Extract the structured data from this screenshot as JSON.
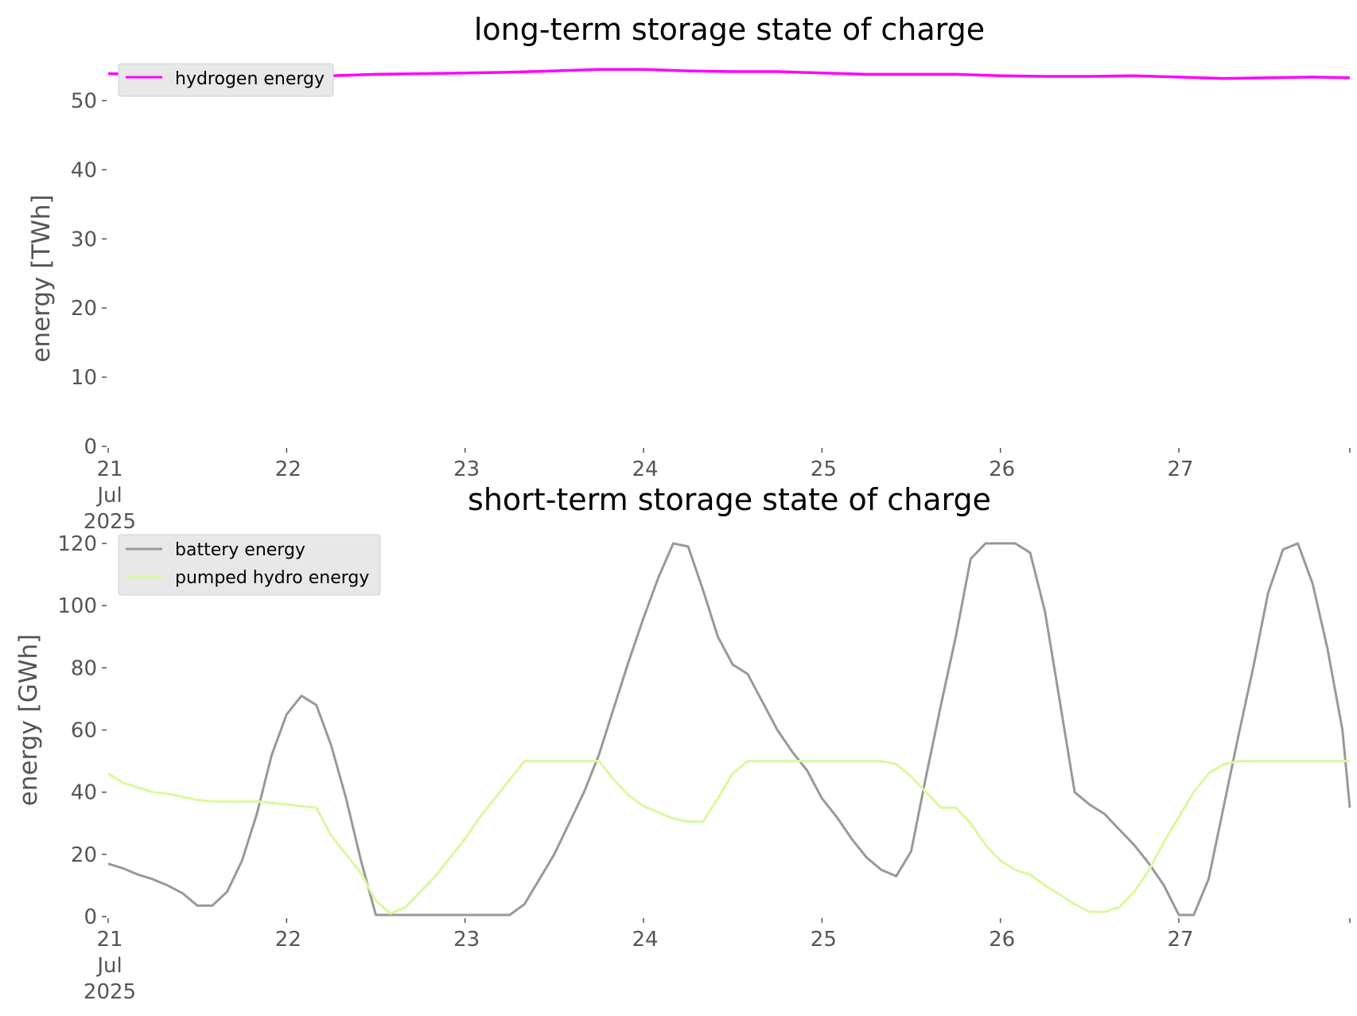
{
  "chart_data": [
    {
      "type": "line",
      "title": "long-term storage state of charge",
      "xlabel": "",
      "ylabel": "energy [TWh]",
      "ylim": [
        0,
        55
      ],
      "yticks": [
        0,
        10,
        20,
        30,
        40,
        50
      ],
      "xlim": [
        "2025-07-21 00:00",
        "2025-07-27 23:00"
      ],
      "xtick_labels": [
        {
          "day": "21",
          "month": "Jul",
          "year": "2025"
        },
        {
          "day": "22"
        },
        {
          "day": "23"
        },
        {
          "day": "24"
        },
        {
          "day": "25"
        },
        {
          "day": "26"
        },
        {
          "day": "27"
        }
      ],
      "grid": false,
      "legend_position": "top-left",
      "x": [
        "2025-07-21 00:00",
        "2025-07-21 06:00",
        "2025-07-21 12:00",
        "2025-07-21 18:00",
        "2025-07-22 00:00",
        "2025-07-22 06:00",
        "2025-07-22 12:00",
        "2025-07-22 18:00",
        "2025-07-23 00:00",
        "2025-07-23 06:00",
        "2025-07-23 12:00",
        "2025-07-23 18:00",
        "2025-07-24 00:00",
        "2025-07-24 06:00",
        "2025-07-24 12:00",
        "2025-07-24 18:00",
        "2025-07-25 00:00",
        "2025-07-25 06:00",
        "2025-07-25 12:00",
        "2025-07-25 18:00",
        "2025-07-26 00:00",
        "2025-07-26 06:00",
        "2025-07-26 12:00",
        "2025-07-26 18:00",
        "2025-07-27 00:00",
        "2025-07-27 06:00",
        "2025-07-27 12:00",
        "2025-07-27 18:00",
        "2025-07-27 23:00"
      ],
      "series": [
        {
          "name": "hydrogen energy",
          "color": "#ff00ff",
          "values": [
            53.9,
            53.8,
            53.7,
            53.6,
            53.5,
            53.6,
            53.8,
            53.9,
            54.0,
            54.1,
            54.3,
            54.5,
            54.5,
            54.3,
            54.2,
            54.2,
            54.0,
            53.8,
            53.8,
            53.8,
            53.6,
            53.5,
            53.5,
            53.6,
            53.4,
            53.2,
            53.3,
            53.4,
            53.3
          ]
        }
      ]
    },
    {
      "type": "line",
      "title": "short-term storage state of charge",
      "xlabel": "",
      "ylabel": "energy [GWh]",
      "ylim": [
        0,
        120
      ],
      "yticks": [
        0,
        20,
        40,
        60,
        80,
        100,
        120
      ],
      "xlim": [
        "2025-07-21 00:00",
        "2025-07-27 23:00"
      ],
      "xtick_labels": [
        {
          "day": "21",
          "month": "Jul",
          "year": "2025"
        },
        {
          "day": "22"
        },
        {
          "day": "23"
        },
        {
          "day": "24"
        },
        {
          "day": "25"
        },
        {
          "day": "26"
        },
        {
          "day": "27"
        }
      ],
      "grid": false,
      "legend_position": "top-left",
      "x": [
        "2025-07-21 00:00",
        "2025-07-21 02:00",
        "2025-07-21 04:00",
        "2025-07-21 06:00",
        "2025-07-21 08:00",
        "2025-07-21 10:00",
        "2025-07-21 12:00",
        "2025-07-21 14:00",
        "2025-07-21 16:00",
        "2025-07-21 18:00",
        "2025-07-21 20:00",
        "2025-07-21 22:00",
        "2025-07-22 00:00",
        "2025-07-22 02:00",
        "2025-07-22 04:00",
        "2025-07-22 06:00",
        "2025-07-22 08:00",
        "2025-07-22 10:00",
        "2025-07-22 12:00",
        "2025-07-22 14:00",
        "2025-07-22 16:00",
        "2025-07-22 18:00",
        "2025-07-22 20:00",
        "2025-07-22 22:00",
        "2025-07-23 00:00",
        "2025-07-23 02:00",
        "2025-07-23 04:00",
        "2025-07-23 06:00",
        "2025-07-23 08:00",
        "2025-07-23 10:00",
        "2025-07-23 12:00",
        "2025-07-23 14:00",
        "2025-07-23 16:00",
        "2025-07-23 18:00",
        "2025-07-23 20:00",
        "2025-07-23 22:00",
        "2025-07-24 00:00",
        "2025-07-24 02:00",
        "2025-07-24 04:00",
        "2025-07-24 06:00",
        "2025-07-24 08:00",
        "2025-07-24 10:00",
        "2025-07-24 12:00",
        "2025-07-24 14:00",
        "2025-07-24 16:00",
        "2025-07-24 18:00",
        "2025-07-24 20:00",
        "2025-07-24 22:00",
        "2025-07-25 00:00",
        "2025-07-25 02:00",
        "2025-07-25 04:00",
        "2025-07-25 06:00",
        "2025-07-25 08:00",
        "2025-07-25 10:00",
        "2025-07-25 12:00",
        "2025-07-25 14:00",
        "2025-07-25 16:00",
        "2025-07-25 18:00",
        "2025-07-25 20:00",
        "2025-07-25 22:00",
        "2025-07-26 00:00",
        "2025-07-26 02:00",
        "2025-07-26 04:00",
        "2025-07-26 06:00",
        "2025-07-26 08:00",
        "2025-07-26 10:00",
        "2025-07-26 12:00",
        "2025-07-26 14:00",
        "2025-07-26 16:00",
        "2025-07-26 18:00",
        "2025-07-26 20:00",
        "2025-07-26 22:00",
        "2025-07-27 00:00",
        "2025-07-27 02:00",
        "2025-07-27 04:00",
        "2025-07-27 06:00",
        "2025-07-27 08:00",
        "2025-07-27 10:00",
        "2025-07-27 12:00",
        "2025-07-27 14:00",
        "2025-07-27 16:00",
        "2025-07-27 18:00",
        "2025-07-27 20:00",
        "2025-07-27 22:00",
        "2025-07-27 23:00"
      ],
      "series": [
        {
          "name": "battery energy",
          "color": "#999999",
          "values": [
            17,
            15.5,
            13.5,
            12,
            10,
            7.5,
            3.5,
            3.5,
            8,
            18,
            33,
            52,
            65,
            71,
            68,
            55,
            38,
            18,
            0.5,
            0.5,
            0.5,
            0.5,
            0.5,
            0.5,
            0.5,
            0.5,
            0.5,
            0.5,
            4,
            12,
            20,
            30,
            40,
            52,
            67,
            82,
            96,
            109,
            120,
            119,
            105,
            90,
            81,
            78,
            69,
            60,
            53,
            47,
            38,
            32,
            25,
            19,
            15,
            13,
            21,
            45,
            68,
            90,
            115,
            120,
            120,
            120,
            117,
            98,
            69,
            40,
            36,
            33,
            28,
            23,
            17,
            10,
            0.5,
            0.5,
            12,
            35,
            58,
            80,
            104,
            118,
            120,
            107,
            86,
            60,
            35
          ]
        },
        {
          "name": "pumped hydro energy",
          "color": "#d9f99d",
          "values": [
            46,
            43,
            41.5,
            40,
            39.5,
            38.5,
            37.5,
            37,
            37,
            37,
            37,
            36.5,
            36,
            35.5,
            35,
            26,
            20,
            14,
            5,
            1,
            3,
            8,
            13,
            19,
            25,
            32,
            38,
            44,
            50,
            50,
            50,
            50,
            50,
            50,
            44,
            39,
            35.5,
            33.5,
            31.5,
            30.5,
            30.5,
            38,
            46,
            50,
            50,
            50,
            50,
            50,
            50,
            50,
            50,
            50,
            50,
            49,
            45,
            40,
            35,
            35,
            30,
            23,
            18,
            15,
            13.5,
            10,
            7,
            4,
            1.5,
            1.5,
            3,
            8,
            15,
            24,
            32,
            40,
            46,
            49,
            50,
            50,
            50,
            50,
            50,
            50,
            50,
            50,
            50
          ]
        }
      ]
    }
  ]
}
